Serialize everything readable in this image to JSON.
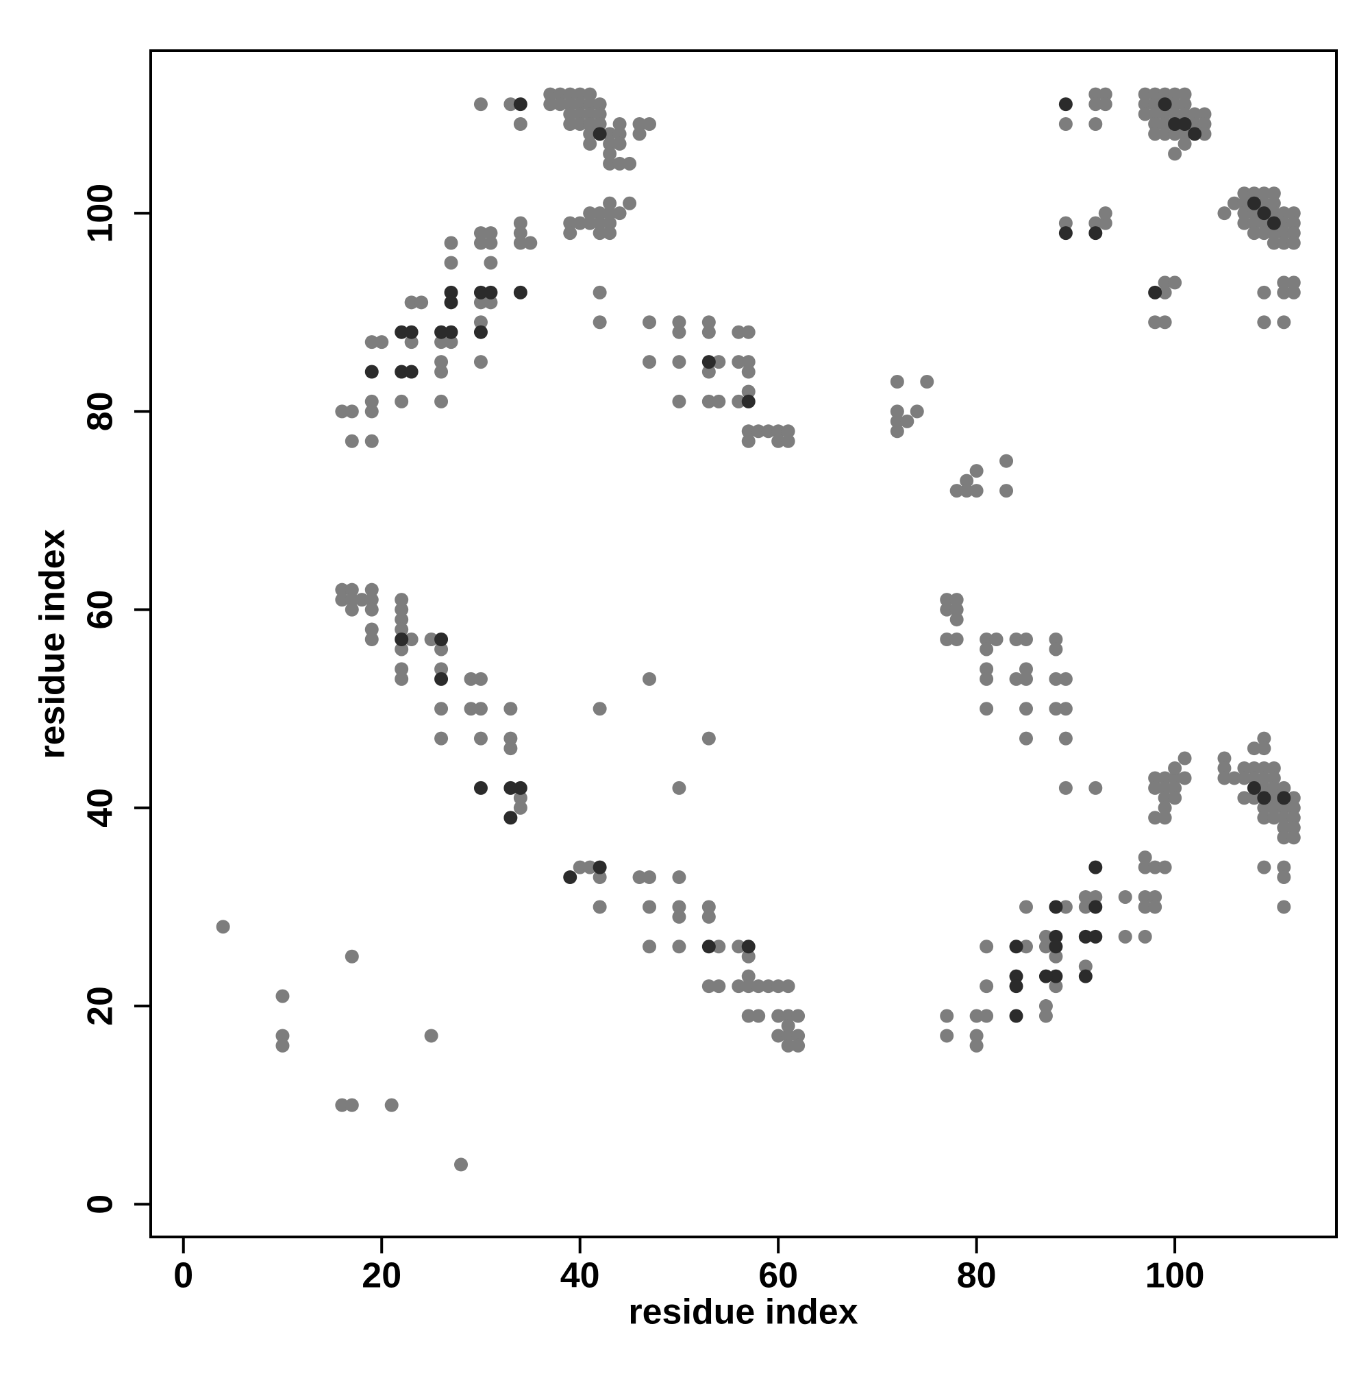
{
  "chart_data": {
    "type": "scatter",
    "xlabel": "residue index",
    "ylabel": "residue index",
    "xlim": [
      -3.3,
      116.3
    ],
    "ylim": [
      -3.3,
      116.4
    ],
    "xticks": [
      0,
      20,
      40,
      60,
      80,
      100
    ],
    "yticks": [
      0,
      20,
      40,
      60,
      80,
      100
    ],
    "series": [
      {
        "color": "#7d7d7d",
        "x": [
          4,
          10,
          10,
          10,
          17,
          16,
          17,
          21,
          25,
          28,
          16,
          17,
          17,
          19,
          19,
          20,
          19,
          19,
          23,
          24,
          23,
          22,
          26,
          27,
          26,
          26,
          26,
          27,
          27,
          30,
          31,
          30,
          31,
          31,
          30,
          31,
          30,
          30,
          34,
          34,
          34,
          35,
          30,
          33,
          34,
          37,
          38,
          39,
          40,
          41,
          37,
          38,
          39,
          40,
          41,
          42,
          39,
          40,
          41,
          42,
          39,
          40,
          41,
          42,
          44,
          46,
          47,
          41,
          43,
          44,
          46,
          41,
          43,
          44,
          43,
          43,
          44,
          45,
          39,
          40,
          41,
          41,
          42,
          43,
          44,
          43,
          45,
          42,
          43,
          39,
          42,
          43,
          42,
          42,
          47,
          47,
          50,
          50,
          50,
          50,
          53,
          53,
          53,
          53,
          54,
          54,
          56,
          57,
          56,
          57,
          57,
          57,
          56,
          57,
          58,
          59,
          60,
          61,
          57,
          60,
          61,
          72,
          75,
          72,
          74,
          72,
          73,
          72,
          80,
          83,
          79,
          78,
          79,
          80,
          83,
          89,
          92,
          93,
          92,
          93,
          92,
          89,
          92,
          93,
          93,
          99,
          100,
          99,
          98,
          99,
          97,
          98,
          99,
          100,
          101,
          97,
          98,
          100,
          101,
          97,
          98,
          99,
          100,
          101,
          102,
          103,
          98,
          99,
          102,
          103,
          98,
          99,
          100,
          101,
          103,
          101,
          100,
          105,
          107,
          108,
          109,
          110,
          106,
          107,
          109,
          110,
          107,
          108,
          110,
          111,
          112,
          107,
          108,
          109,
          111,
          112,
          108,
          109,
          110,
          111,
          112,
          110,
          111,
          112,
          109,
          111,
          112,
          111,
          112,
          109,
          111,
          16,
          17,
          19,
          16,
          17,
          18,
          19,
          17,
          19,
          19,
          19,
          22,
          22,
          22,
          22,
          23,
          22,
          22,
          22,
          25,
          26,
          26,
          26,
          26,
          29,
          30,
          29,
          30,
          30,
          33,
          33,
          33,
          34,
          34,
          47,
          42,
          53,
          50,
          40,
          41,
          42,
          42,
          46,
          47,
          50,
          47,
          50,
          50,
          53,
          53,
          47,
          50,
          54,
          56,
          57,
          57,
          53,
          54,
          56,
          57,
          58,
          59,
          60,
          61,
          57,
          58,
          60,
          61,
          62,
          60,
          61,
          62,
          61,
          61,
          62,
          77,
          78,
          77,
          78,
          78,
          77,
          78,
          81,
          82,
          84,
          85,
          88,
          81,
          88,
          81,
          85,
          81,
          84,
          85,
          88,
          89,
          81,
          85,
          88,
          89,
          85,
          89,
          89,
          92,
          98,
          99,
          100,
          101,
          100,
          101,
          98,
          99,
          100,
          99,
          100,
          99,
          98,
          99,
          105,
          105,
          105,
          106,
          109,
          108,
          109,
          107,
          108,
          109,
          110,
          107,
          108,
          109,
          110,
          109,
          110,
          111,
          107,
          108,
          110,
          112,
          109,
          110,
          111,
          112,
          109,
          110,
          111,
          112,
          111,
          112,
          111,
          112,
          109,
          111,
          111,
          111,
          97,
          97,
          98,
          99,
          97,
          98,
          97,
          98,
          95,
          95,
          97,
          91,
          92,
          91,
          91,
          89,
          85,
          87,
          87,
          88,
          88,
          85,
          81,
          81,
          87,
          87,
          80,
          81,
          77,
          77,
          80,
          80
        ],
        "y": [
          28,
          21,
          17,
          16,
          25,
          10,
          10,
          10,
          17,
          4,
          80,
          80,
          77,
          77,
          87,
          87,
          81,
          80,
          91,
          91,
          87,
          81,
          87,
          87,
          85,
          84,
          81,
          97,
          95,
          98,
          98,
          97,
          97,
          95,
          91,
          91,
          89,
          85,
          99,
          98,
          97,
          97,
          111,
          111,
          109,
          112,
          112,
          112,
          112,
          112,
          111,
          111,
          111,
          111,
          111,
          111,
          110,
          110,
          110,
          110,
          109,
          109,
          109,
          109,
          109,
          109,
          109,
          108,
          108,
          108,
          108,
          107,
          107,
          107,
          106,
          105,
          105,
          105,
          99,
          99,
          99,
          100,
          100,
          100,
          100,
          101,
          101,
          99,
          99,
          98,
          98,
          98,
          92,
          89,
          89,
          85,
          89,
          88,
          85,
          81,
          89,
          88,
          84,
          81,
          81,
          85,
          88,
          88,
          85,
          85,
          84,
          82,
          81,
          78,
          78,
          78,
          78,
          78,
          77,
          77,
          77,
          83,
          83,
          80,
          80,
          79,
          79,
          78,
          74,
          75,
          73,
          72,
          72,
          72,
          72,
          109,
          112,
          112,
          111,
          111,
          109,
          99,
          99,
          99,
          100,
          93,
          93,
          92,
          89,
          89,
          112,
          112,
          112,
          112,
          112,
          111,
          111,
          111,
          111,
          110,
          110,
          110,
          110,
          110,
          110,
          110,
          109,
          109,
          109,
          109,
          108,
          108,
          108,
          108,
          108,
          107,
          106,
          100,
          102,
          102,
          102,
          102,
          101,
          101,
          101,
          101,
          100,
          100,
          100,
          100,
          100,
          99,
          99,
          99,
          99,
          99,
          98,
          98,
          98,
          98,
          98,
          97,
          97,
          97,
          92,
          92,
          93,
          93,
          92,
          89,
          89,
          62,
          62,
          62,
          61,
          61,
          61,
          61,
          60,
          60,
          58,
          57,
          61,
          60,
          59,
          58,
          57,
          56,
          54,
          53,
          57,
          56,
          54,
          50,
          47,
          53,
          53,
          50,
          50,
          47,
          50,
          47,
          46,
          41,
          40,
          53,
          50,
          47,
          42,
          34,
          34,
          33,
          30,
          33,
          33,
          33,
          30,
          30,
          29,
          30,
          29,
          26,
          26,
          26,
          26,
          25,
          23,
          22,
          22,
          22,
          22,
          22,
          22,
          22,
          22,
          19,
          19,
          19,
          19,
          19,
          17,
          17,
          17,
          18,
          16,
          16,
          61,
          61,
          60,
          60,
          59,
          57,
          57,
          57,
          57,
          57,
          57,
          57,
          56,
          56,
          54,
          54,
          53,
          53,
          53,
          53,
          53,
          50,
          50,
          50,
          50,
          47,
          47,
          42,
          42,
          43,
          43,
          43,
          45,
          44,
          43,
          42,
          42,
          42,
          41,
          41,
          40,
          39,
          39,
          45,
          44,
          43,
          43,
          47,
          46,
          46,
          44,
          44,
          44,
          44,
          43,
          43,
          43,
          43,
          42,
          42,
          42,
          41,
          41,
          41,
          41,
          40,
          40,
          40,
          40,
          39,
          39,
          39,
          39,
          38,
          38,
          37,
          37,
          34,
          34,
          33,
          30,
          35,
          34,
          34,
          34,
          31,
          31,
          30,
          30,
          31,
          27,
          27,
          31,
          31,
          30,
          24,
          30,
          30,
          27,
          26,
          25,
          22,
          26,
          26,
          22,
          20,
          19,
          19,
          19,
          19,
          17,
          17,
          16
        ]
      },
      {
        "color": "#2b2b2b",
        "x": [
          19,
          22,
          23,
          22,
          23,
          26,
          27,
          27,
          27,
          30,
          31,
          30,
          34,
          34,
          42,
          89,
          89,
          92,
          98,
          99,
          100,
          101,
          102,
          109,
          110,
          108,
          39,
          42,
          33,
          34,
          33,
          30,
          88,
          88,
          88,
          88,
          87,
          84,
          84,
          84,
          84,
          91,
          92,
          92,
          91,
          92,
          53,
          57,
          26,
          22,
          26,
          53,
          57,
          108,
          109,
          111
        ],
        "y": [
          84,
          88,
          88,
          84,
          84,
          88,
          88,
          92,
          91,
          92,
          92,
          88,
          92,
          111,
          108,
          111,
          98,
          98,
          92,
          111,
          109,
          109,
          108,
          100,
          99,
          101,
          33,
          34,
          39,
          42,
          42,
          42,
          30,
          27,
          26,
          23,
          23,
          26,
          23,
          22,
          19,
          27,
          27,
          30,
          23,
          34,
          26,
          26,
          53,
          57,
          57,
          85,
          81,
          42,
          41,
          41
        ]
      }
    ]
  }
}
